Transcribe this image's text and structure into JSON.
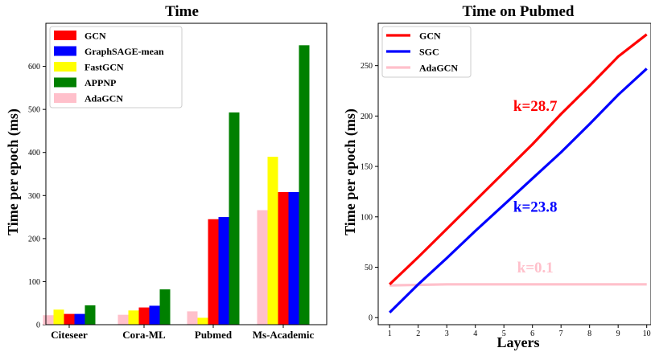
{
  "chart_data": [
    {
      "type": "bar",
      "title": "Time",
      "xlabel": "",
      "ylabel": "Time per epoch (ms)",
      "ylim": [
        0,
        700
      ],
      "yticks": [
        0,
        100,
        200,
        300,
        400,
        500,
        600
      ],
      "categories": [
        "Citeseer",
        "Cora-ML",
        "Pubmed",
        "Ms-Academic"
      ],
      "series": [
        {
          "name": "AdaGCN",
          "color": "#ffc0cb",
          "values": [
            22,
            23,
            31,
            266
          ]
        },
        {
          "name": "FastGCN",
          "color": "#ffff00",
          "values": [
            35,
            33,
            16,
            390
          ]
        },
        {
          "name": "GCN",
          "color": "#ff0000",
          "values": [
            25,
            40,
            245,
            308
          ]
        },
        {
          "name": "GraphSAGE-mean",
          "color": "#0000ff",
          "values": [
            25,
            44,
            250,
            308
          ]
        },
        {
          "name": "APPNP",
          "color": "#008000",
          "values": [
            45,
            82,
            493,
            649
          ]
        }
      ],
      "legend_order": [
        "GCN",
        "GraphSAGE-mean",
        "FastGCN",
        "APPNP",
        "AdaGCN"
      ],
      "legend_position": "top-left",
      "grid": false
    },
    {
      "type": "line",
      "title": "Time on Pubmed",
      "xlabel": "Layers",
      "ylabel": "Time per epoch (ms)",
      "x": [
        1,
        2,
        3,
        4,
        5,
        6,
        7,
        8,
        9,
        10
      ],
      "xlim": [
        0.6,
        10.15
      ],
      "ylim": [
        -7,
        292
      ],
      "yticks": [
        0,
        50,
        100,
        150,
        200,
        250
      ],
      "series": [
        {
          "name": "GCN",
          "color": "#ff0000",
          "values": [
            33,
            60,
            88,
            116,
            144,
            172,
            202,
            230,
            259,
            281
          ]
        },
        {
          "name": "SGC",
          "color": "#0000ff",
          "values": [
            5,
            33,
            59,
            86,
            112,
            138,
            164,
            192,
            221,
            247
          ]
        },
        {
          "name": "AdaGCN",
          "color": "#ffc0cb",
          "values": [
            32,
            32.5,
            33,
            33,
            33,
            33,
            33,
            33,
            33,
            33
          ]
        }
      ],
      "annotations": [
        {
          "text": "k=28.7",
          "color": "#ff0000",
          "x": 6.1,
          "y": 205
        },
        {
          "text": "k=23.8",
          "color": "#0000ff",
          "x": 6.1,
          "y": 105
        },
        {
          "text": "k=0.1",
          "color": "#ffc0cb",
          "x": 6.1,
          "y": 45
        }
      ],
      "legend_position": "top-left",
      "grid": false
    }
  ]
}
